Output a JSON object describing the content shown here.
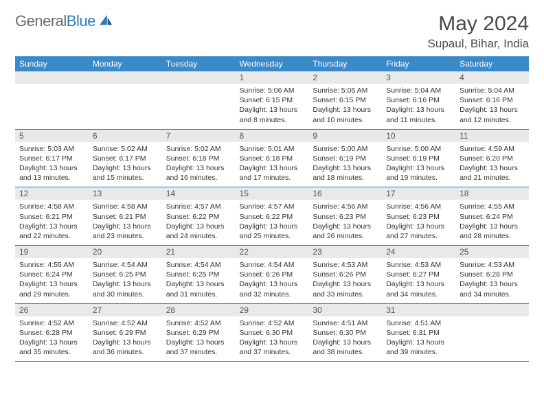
{
  "logo": {
    "word1": "General",
    "word2": "Blue"
  },
  "title": "May 2024",
  "location": "Supaul, Bihar, India",
  "colors": {
    "header_bg": "#3a89c9",
    "header_text": "#ffffff",
    "daynum_bg": "#e9e9e9",
    "border": "#2b7bbf",
    "logo_gray": "#6b6b6b",
    "logo_blue": "#2b7bbf"
  },
  "weekdays": [
    "Sunday",
    "Monday",
    "Tuesday",
    "Wednesday",
    "Thursday",
    "Friday",
    "Saturday"
  ],
  "weeks": [
    [
      {
        "n": "",
        "sr": "",
        "ss": "",
        "dl": ""
      },
      {
        "n": "",
        "sr": "",
        "ss": "",
        "dl": ""
      },
      {
        "n": "",
        "sr": "",
        "ss": "",
        "dl": ""
      },
      {
        "n": "1",
        "sr": "5:06 AM",
        "ss": "6:15 PM",
        "dl": "13 hours and 8 minutes."
      },
      {
        "n": "2",
        "sr": "5:05 AM",
        "ss": "6:15 PM",
        "dl": "13 hours and 10 minutes."
      },
      {
        "n": "3",
        "sr": "5:04 AM",
        "ss": "6:16 PM",
        "dl": "13 hours and 11 minutes."
      },
      {
        "n": "4",
        "sr": "5:04 AM",
        "ss": "6:16 PM",
        "dl": "13 hours and 12 minutes."
      }
    ],
    [
      {
        "n": "5",
        "sr": "5:03 AM",
        "ss": "6:17 PM",
        "dl": "13 hours and 13 minutes."
      },
      {
        "n": "6",
        "sr": "5:02 AM",
        "ss": "6:17 PM",
        "dl": "13 hours and 15 minutes."
      },
      {
        "n": "7",
        "sr": "5:02 AM",
        "ss": "6:18 PM",
        "dl": "13 hours and 16 minutes."
      },
      {
        "n": "8",
        "sr": "5:01 AM",
        "ss": "6:18 PM",
        "dl": "13 hours and 17 minutes."
      },
      {
        "n": "9",
        "sr": "5:00 AM",
        "ss": "6:19 PM",
        "dl": "13 hours and 18 minutes."
      },
      {
        "n": "10",
        "sr": "5:00 AM",
        "ss": "6:19 PM",
        "dl": "13 hours and 19 minutes."
      },
      {
        "n": "11",
        "sr": "4:59 AM",
        "ss": "6:20 PM",
        "dl": "13 hours and 21 minutes."
      }
    ],
    [
      {
        "n": "12",
        "sr": "4:58 AM",
        "ss": "6:21 PM",
        "dl": "13 hours and 22 minutes."
      },
      {
        "n": "13",
        "sr": "4:58 AM",
        "ss": "6:21 PM",
        "dl": "13 hours and 23 minutes."
      },
      {
        "n": "14",
        "sr": "4:57 AM",
        "ss": "6:22 PM",
        "dl": "13 hours and 24 minutes."
      },
      {
        "n": "15",
        "sr": "4:57 AM",
        "ss": "6:22 PM",
        "dl": "13 hours and 25 minutes."
      },
      {
        "n": "16",
        "sr": "4:56 AM",
        "ss": "6:23 PM",
        "dl": "13 hours and 26 minutes."
      },
      {
        "n": "17",
        "sr": "4:56 AM",
        "ss": "6:23 PM",
        "dl": "13 hours and 27 minutes."
      },
      {
        "n": "18",
        "sr": "4:55 AM",
        "ss": "6:24 PM",
        "dl": "13 hours and 28 minutes."
      }
    ],
    [
      {
        "n": "19",
        "sr": "4:55 AM",
        "ss": "6:24 PM",
        "dl": "13 hours and 29 minutes."
      },
      {
        "n": "20",
        "sr": "4:54 AM",
        "ss": "6:25 PM",
        "dl": "13 hours and 30 minutes."
      },
      {
        "n": "21",
        "sr": "4:54 AM",
        "ss": "6:25 PM",
        "dl": "13 hours and 31 minutes."
      },
      {
        "n": "22",
        "sr": "4:54 AM",
        "ss": "6:26 PM",
        "dl": "13 hours and 32 minutes."
      },
      {
        "n": "23",
        "sr": "4:53 AM",
        "ss": "6:26 PM",
        "dl": "13 hours and 33 minutes."
      },
      {
        "n": "24",
        "sr": "4:53 AM",
        "ss": "6:27 PM",
        "dl": "13 hours and 34 minutes."
      },
      {
        "n": "25",
        "sr": "4:53 AM",
        "ss": "6:28 PM",
        "dl": "13 hours and 34 minutes."
      }
    ],
    [
      {
        "n": "26",
        "sr": "4:52 AM",
        "ss": "6:28 PM",
        "dl": "13 hours and 35 minutes."
      },
      {
        "n": "27",
        "sr": "4:52 AM",
        "ss": "6:29 PM",
        "dl": "13 hours and 36 minutes."
      },
      {
        "n": "28",
        "sr": "4:52 AM",
        "ss": "6:29 PM",
        "dl": "13 hours and 37 minutes."
      },
      {
        "n": "29",
        "sr": "4:52 AM",
        "ss": "6:30 PM",
        "dl": "13 hours and 37 minutes."
      },
      {
        "n": "30",
        "sr": "4:51 AM",
        "ss": "6:30 PM",
        "dl": "13 hours and 38 minutes."
      },
      {
        "n": "31",
        "sr": "4:51 AM",
        "ss": "6:31 PM",
        "dl": "13 hours and 39 minutes."
      },
      {
        "n": "",
        "sr": "",
        "ss": "",
        "dl": ""
      }
    ]
  ],
  "labels": {
    "sunrise": "Sunrise:",
    "sunset": "Sunset:",
    "daylight": "Daylight:"
  }
}
